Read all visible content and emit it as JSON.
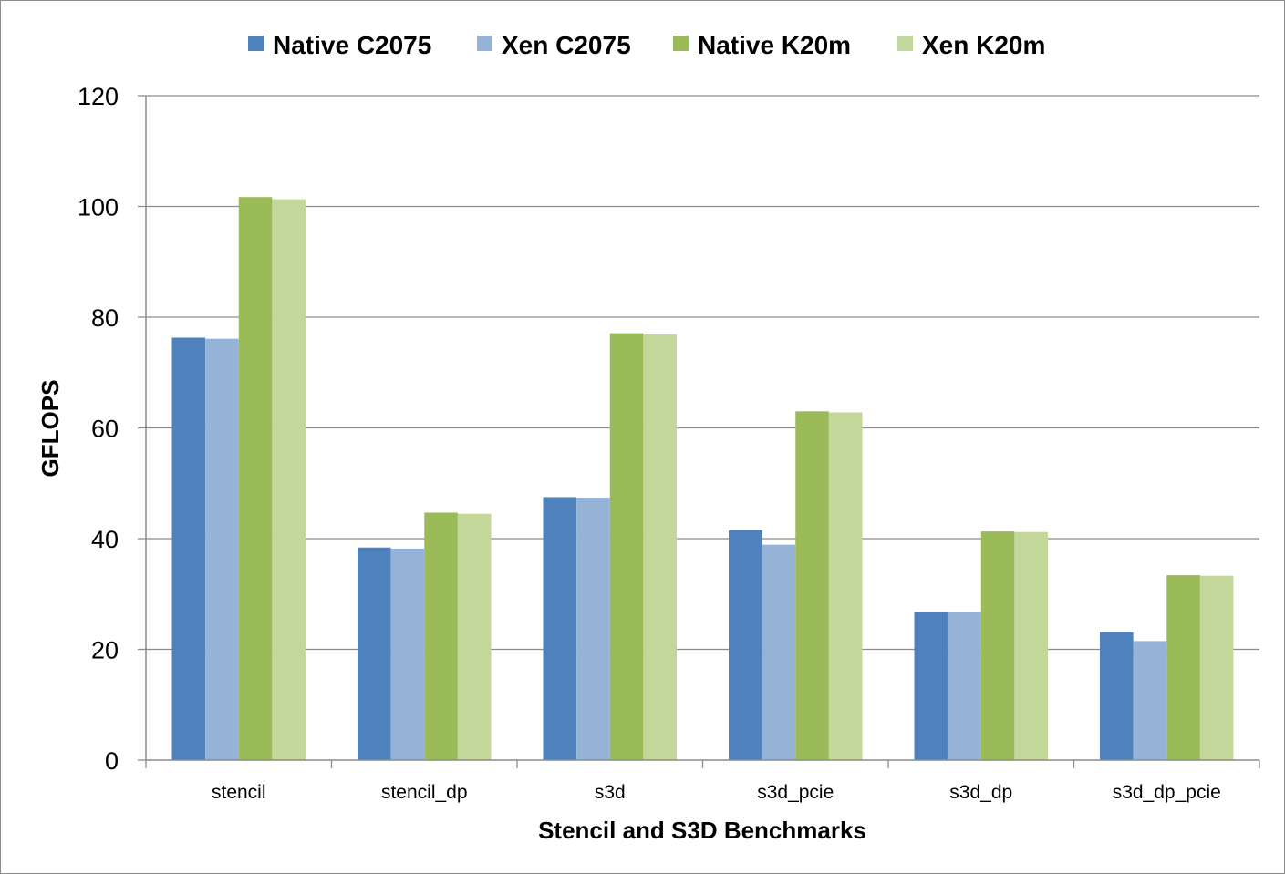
{
  "chart_data": {
    "type": "bar",
    "title": "",
    "xlabel": "Stencil and S3D Benchmarks",
    "ylabel": "GFLOPS",
    "ylim": [
      0,
      120
    ],
    "yticks": [
      "0",
      "20",
      "40",
      "60",
      "80",
      "100",
      "120"
    ],
    "grid": true,
    "legend_position": "top",
    "categories": [
      "stencil",
      "stencil_dp",
      "s3d",
      "s3d_pcie",
      "s3d_dp",
      "s3d_dp_pcie"
    ],
    "series": [
      {
        "name": "Native C2075",
        "color": "#4f81bd",
        "values": [
          76.3,
          38.4,
          47.5,
          41.5,
          26.7,
          23.1
        ]
      },
      {
        "name": "Xen C2075",
        "color": "#95b3d7",
        "values": [
          76.1,
          38.2,
          47.4,
          38.9,
          26.7,
          21.5
        ]
      },
      {
        "name": "Native K20m",
        "color": "#9bbb59",
        "values": [
          101.7,
          44.7,
          77.1,
          63.0,
          41.3,
          33.4
        ]
      },
      {
        "name": "Xen K20m",
        "color": "#c4d79b",
        "values": [
          101.3,
          44.5,
          76.9,
          62.8,
          41.2,
          33.3
        ]
      }
    ]
  }
}
